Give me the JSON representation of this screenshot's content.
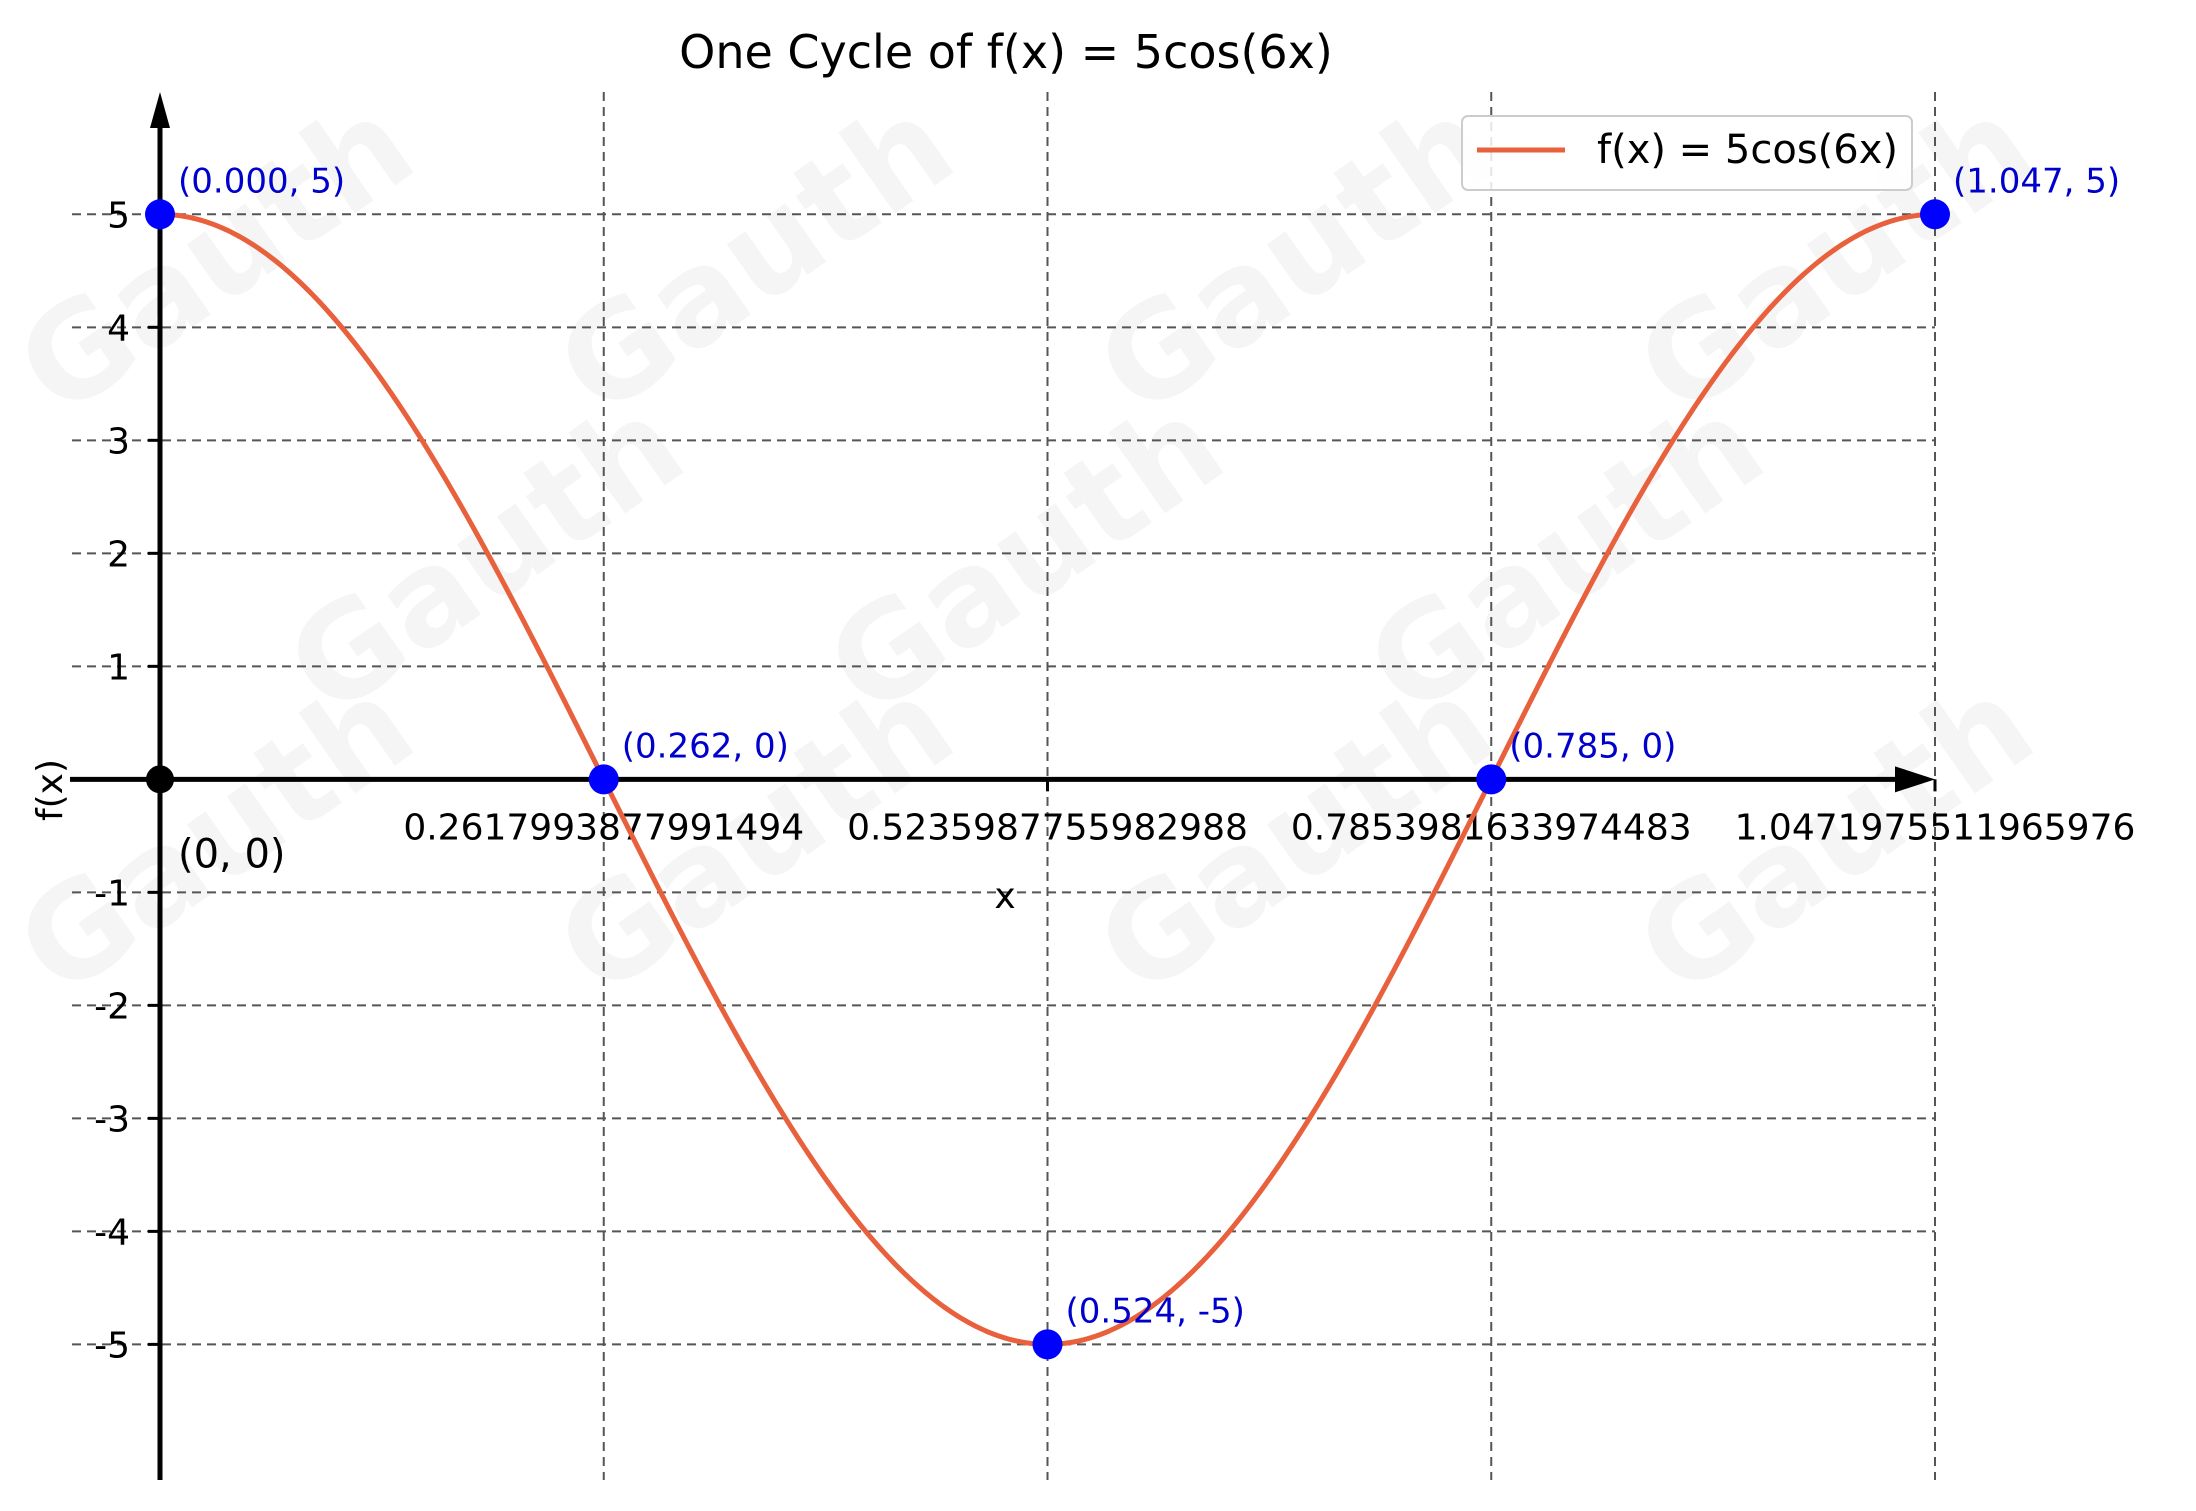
{
  "chart_data": {
    "type": "line",
    "title": "One Cycle of f(x) = 5cos(6x)",
    "xlabel": "x",
    "ylabel": "f(x)",
    "xlim": [
      0,
      1.0471975511965976
    ],
    "ylim": [
      -6.2,
      6.1
    ],
    "grid": true,
    "legend_placement": "top-right",
    "x_ticks": [
      {
        "value": 0.2617993877991494,
        "label": "0.2617993877991494"
      },
      {
        "value": 0.5235987755982988,
        "label": "0.5235987755982988"
      },
      {
        "value": 0.7853981633974483,
        "label": "0.7853981633974483"
      },
      {
        "value": 1.0471975511965976,
        "label": "1.0471975511965976"
      }
    ],
    "y_ticks": [
      {
        "value": 5,
        "label": "5"
      },
      {
        "value": 4,
        "label": "4"
      },
      {
        "value": 3,
        "label": "3"
      },
      {
        "value": 2,
        "label": "2"
      },
      {
        "value": 1,
        "label": "1"
      },
      {
        "value": -1,
        "label": "-1"
      },
      {
        "value": -2,
        "label": "-2"
      },
      {
        "value": -3,
        "label": "-3"
      },
      {
        "value": -4,
        "label": "-4"
      },
      {
        "value": -5,
        "label": "-5"
      }
    ],
    "series": [
      {
        "name": "f(x) = 5cos(6x)",
        "color": "#e8603c",
        "function": "5*cos(6*x)",
        "domain": [
          0,
          1.0471975511965976
        ]
      }
    ],
    "key_points": [
      {
        "x": 0,
        "y": 5,
        "label": "(0.000, 5)"
      },
      {
        "x": 0.2617993877991494,
        "y": 0,
        "label": "(0.262, 0)"
      },
      {
        "x": 0.5235987755982988,
        "y": -5,
        "label": "(0.524, -5)"
      },
      {
        "x": 0.7853981633974483,
        "y": 0,
        "label": "(0.785, 0)"
      },
      {
        "x": 1.0471975511965976,
        "y": 5,
        "label": "(1.047, 5)"
      }
    ],
    "origin": {
      "x": 0,
      "y": 0,
      "label": "(0, 0)"
    },
    "colors": {
      "curve": "#e8603c",
      "points": "#0000ff",
      "annotations": "#0000cc",
      "origin": "#000000"
    },
    "watermark": "Gauth"
  }
}
